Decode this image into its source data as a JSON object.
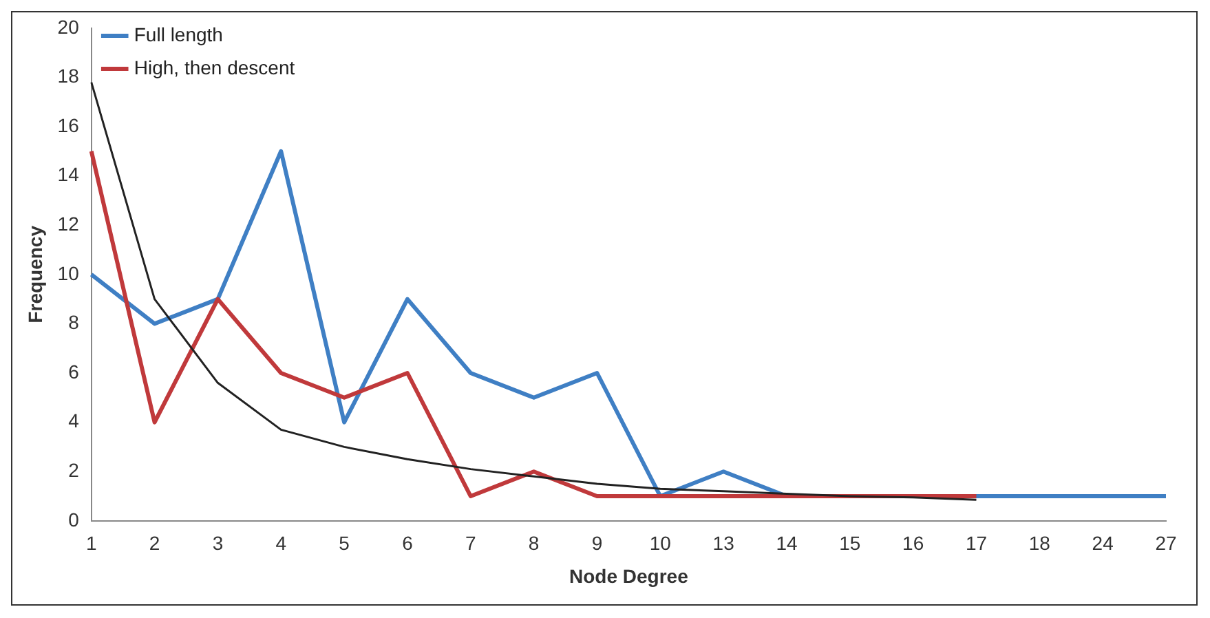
{
  "chart_data": {
    "type": "line",
    "xlabel": "Node Degree",
    "ylabel": "Frequency",
    "categories": [
      "1",
      "2",
      "3",
      "4",
      "5",
      "6",
      "7",
      "8",
      "9",
      "10",
      "13",
      "14",
      "15",
      "16",
      "17",
      "18",
      "24",
      "27"
    ],
    "series": [
      {
        "name": "Full length",
        "color": "#3f7fc4",
        "values": [
          10,
          8,
          9,
          15,
          4,
          9,
          6,
          5,
          6,
          1,
          2,
          1,
          1,
          1,
          1,
          1,
          1,
          1
        ]
      },
      {
        "name": "High, then descent",
        "color": "#c0393b",
        "values": [
          15,
          4,
          9,
          6,
          5,
          6,
          1,
          2,
          1,
          1,
          1,
          1,
          1,
          1,
          1,
          null,
          null,
          null
        ]
      },
      {
        "color": "#222222",
        "values": [
          17.8,
          9,
          5.6,
          3.7,
          3,
          2.5,
          2.1,
          1.8,
          1.5,
          1.3,
          1.2,
          1.1,
          1,
          0.95,
          0.85,
          null,
          null,
          null
        ]
      }
    ],
    "ylim": [
      0,
      20
    ],
    "yticks": [
      0,
      2,
      4,
      6,
      8,
      10,
      12,
      14,
      16,
      18,
      20
    ],
    "grid": false,
    "legend": "top left",
    "marker": "none",
    "line_style": "solid"
  }
}
